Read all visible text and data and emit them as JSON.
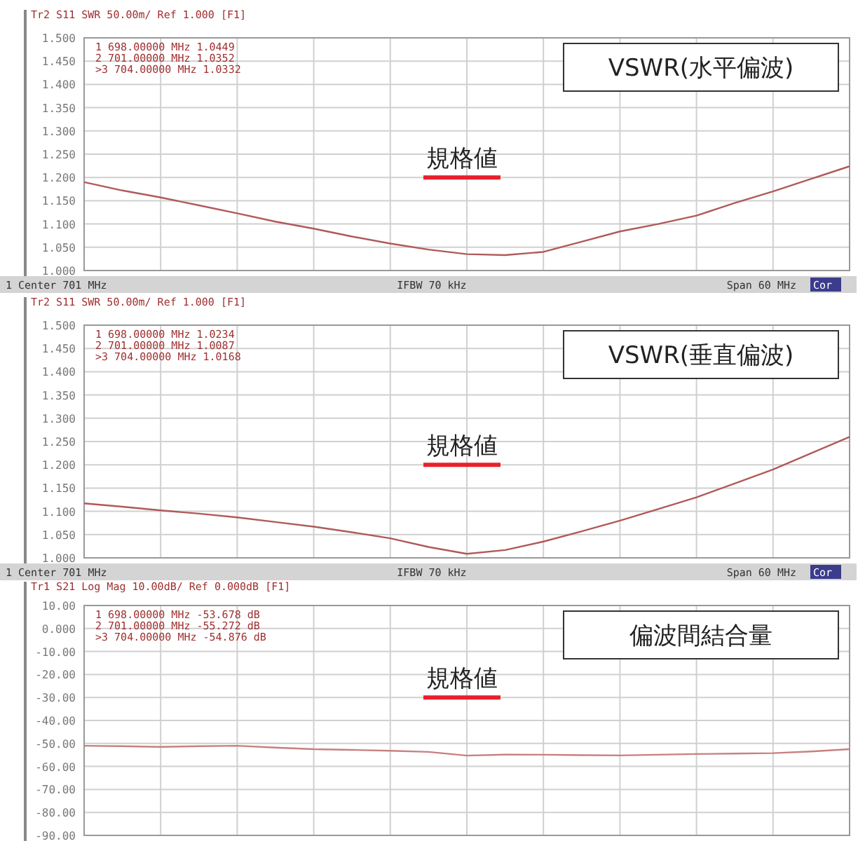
{
  "chart_data": [
    {
      "type": "line",
      "title": "VSWR(水平偏波)",
      "subtitle": "Tr2 S11 SWR 50.00m/ Ref 1.000 [F1]",
      "categories": [
        null,
        null,
        null,
        null,
        null,
        null,
        null,
        null,
        null,
        null,
        null,
        null,
        null,
        null,
        null,
        null,
        null,
        null,
        null,
        null,
        null
      ],
      "ylim": [
        1.0,
        1.5
      ],
      "yticks": [
        {
          "value": 1.0,
          "label": "1.000"
        },
        {
          "value": 1.05,
          "label": "1.050"
        },
        {
          "value": 1.1,
          "label": "1.100"
        },
        {
          "value": 1.15,
          "label": "1.150"
        },
        {
          "value": 1.2,
          "label": "1.200"
        },
        {
          "value": 1.25,
          "label": "1.250"
        },
        {
          "value": 1.3,
          "label": "1.300"
        },
        {
          "value": 1.35,
          "label": "1.350"
        },
        {
          "value": 1.4,
          "label": "1.400"
        },
        {
          "value": 1.45,
          "label": "1.450"
        },
        {
          "value": 1.5,
          "label": "1.500"
        }
      ],
      "grid": true,
      "tick_labels": "y",
      "marker": "none",
      "series": [
        {
          "color": "#b05a5a",
          "values": [
            1.19,
            1.172,
            1.157,
            1.14,
            1.123,
            1.105,
            1.09,
            1.073,
            1.058,
            1.0449,
            1.0352,
            1.0332,
            1.04,
            1.062,
            1.084,
            1.1,
            1.118,
            1.145,
            1.17,
            1.197,
            1.224
          ]
        }
      ],
      "ref_lines": [
        {
          "axis": "y",
          "value": 1.2,
          "label": "規格値",
          "color": "#e8202a"
        }
      ],
      "annotations": [
        "1   698.00000 MHz   1.0449",
        "2   701.00000 MHz   1.0352",
        ">3   704.00000 MHz   1.0332",
        "1  Center 701 MHz",
        "IFBW 70 kHz",
        "Span 60 MHz",
        "Cor"
      ]
    },
    {
      "type": "line",
      "title": "VSWR(垂直偏波)",
      "subtitle": "Tr2 S11 SWR 50.00m/ Ref 1.000 [F1]",
      "categories": [
        null,
        null,
        null,
        null,
        null,
        null,
        null,
        null,
        null,
        null,
        null,
        null,
        null,
        null,
        null,
        null,
        null,
        null,
        null,
        null,
        null
      ],
      "ylim": [
        1.0,
        1.5
      ],
      "yticks": [
        {
          "value": 1.0,
          "label": "1.000"
        },
        {
          "value": 1.05,
          "label": "1.050"
        },
        {
          "value": 1.1,
          "label": "1.100"
        },
        {
          "value": 1.15,
          "label": "1.150"
        },
        {
          "value": 1.2,
          "label": "1.200"
        },
        {
          "value": 1.25,
          "label": "1.250"
        },
        {
          "value": 1.3,
          "label": "1.300"
        },
        {
          "value": 1.35,
          "label": "1.350"
        },
        {
          "value": 1.4,
          "label": "1.400"
        },
        {
          "value": 1.45,
          "label": "1.450"
        },
        {
          "value": 1.5,
          "label": "1.500"
        }
      ],
      "grid": true,
      "tick_labels": "y",
      "marker": "none",
      "series": [
        {
          "color": "#b05a5a",
          "values": [
            1.117,
            1.11,
            1.102,
            1.095,
            1.087,
            1.077,
            1.067,
            1.055,
            1.042,
            1.0234,
            1.0087,
            1.0168,
            1.035,
            1.057,
            1.08,
            1.105,
            1.13,
            1.16,
            1.19,
            1.225,
            1.26
          ]
        }
      ],
      "ref_lines": [
        {
          "axis": "y",
          "value": 1.2,
          "label": "規格値",
          "color": "#e8202a"
        }
      ],
      "annotations": [
        "1   698.00000 MHz   1.0234",
        "2   701.00000 MHz   1.0087",
        ">3   704.00000 MHz   1.0168",
        "1  Center 701 MHz",
        "IFBW 70 kHz",
        "Span 60 MHz",
        "Cor"
      ]
    },
    {
      "type": "line",
      "title": "偏波間結合量",
      "subtitle": "Tr1 S21 Log Mag 10.00dB/ Ref 0.000dB [F1]",
      "categories": [
        null,
        null,
        null,
        null,
        null,
        null,
        null,
        null,
        null,
        null,
        null,
        null,
        null,
        null,
        null,
        null,
        null,
        null,
        null,
        null,
        null
      ],
      "ylim": [
        -90,
        10
      ],
      "yticks": [
        {
          "value": 10,
          "label": "10.00"
        },
        {
          "value": 0,
          "label": "0.000"
        },
        {
          "value": -10,
          "label": "-10.00"
        },
        {
          "value": -20,
          "label": "-20.00"
        },
        {
          "value": -30,
          "label": "-30.00"
        },
        {
          "value": -40,
          "label": "-40.00"
        },
        {
          "value": -50,
          "label": "-50.00"
        },
        {
          "value": -60,
          "label": "-60.00"
        },
        {
          "value": -70,
          "label": "-70.00"
        },
        {
          "value": -80,
          "label": "-80.00"
        },
        {
          "value": -90,
          "label": "-90.00"
        }
      ],
      "grid": true,
      "tick_labels": "y",
      "marker": "none",
      "series": [
        {
          "color": "#c88080",
          "values": [
            -51.0,
            -51.2,
            -51.5,
            -51.2,
            -51.0,
            -51.8,
            -52.5,
            -52.8,
            -53.2,
            -53.678,
            -55.272,
            -54.876,
            -54.9,
            -55.1,
            -55.2,
            -54.9,
            -54.6,
            -54.4,
            -54.2,
            -53.5,
            -52.5
          ]
        }
      ],
      "ref_lines": [
        {
          "axis": "y",
          "value": -30,
          "label": "規格値",
          "color": "#e8202a"
        }
      ],
      "annotations": [
        "1   698.00000 MHz  -53.678 dB",
        "2   701.00000 MHz  -55.272 dB",
        ">3   704.00000 MHz  -54.876 dB"
      ]
    }
  ]
}
